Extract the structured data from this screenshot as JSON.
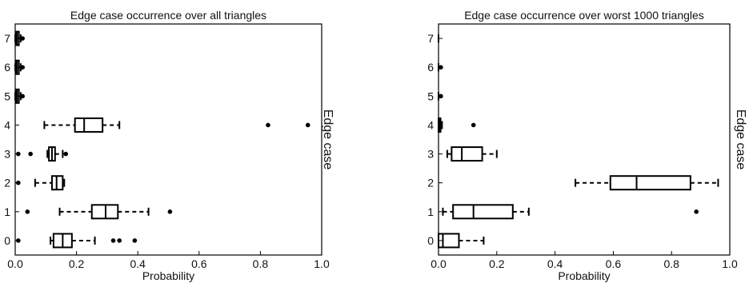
{
  "chart_data": [
    {
      "type": "boxplot",
      "orientation": "horizontal",
      "title": "Edge case occurrence over all triangles",
      "xlabel": "Probability",
      "ylabel": "Edge case",
      "xlim": [
        0.0,
        1.0
      ],
      "xticks": [
        "0.0",
        "0.2",
        "0.4",
        "0.6",
        "0.8",
        "1.0"
      ],
      "categories": [
        "0",
        "1",
        "2",
        "3",
        "4",
        "5",
        "6",
        "7"
      ],
      "boxes": [
        {
          "category": "0",
          "whislo": 0.115,
          "q1": 0.125,
          "med": 0.155,
          "q3": 0.185,
          "whishi": 0.26,
          "fliers": [
            0.01,
            0.32,
            0.34,
            0.39
          ]
        },
        {
          "category": "1",
          "whislo": 0.145,
          "q1": 0.25,
          "med": 0.295,
          "q3": 0.335,
          "whishi": 0.435,
          "fliers": [
            0.04,
            0.505
          ]
        },
        {
          "category": "2",
          "whislo": 0.065,
          "q1": 0.12,
          "med": 0.135,
          "q3": 0.155,
          "whishi": 0.16,
          "fliers": [
            0.01
          ]
        },
        {
          "category": "3",
          "whislo": 0.105,
          "q1": 0.11,
          "med": 0.12,
          "q3": 0.13,
          "whishi": 0.155,
          "fliers": [
            0.01,
            0.05,
            0.165
          ]
        },
        {
          "category": "4",
          "whislo": 0.095,
          "q1": 0.195,
          "med": 0.225,
          "q3": 0.285,
          "whishi": 0.34,
          "fliers": [
            0.825,
            0.955
          ]
        },
        {
          "category": "5",
          "whislo": 0.0,
          "q1": 0.003,
          "med": 0.006,
          "q3": 0.012,
          "whishi": 0.018,
          "fliers": [
            0.024
          ]
        },
        {
          "category": "6",
          "whislo": 0.0,
          "q1": 0.003,
          "med": 0.006,
          "q3": 0.012,
          "whishi": 0.018,
          "fliers": [
            0.024
          ]
        },
        {
          "category": "7",
          "whislo": 0.0,
          "q1": 0.003,
          "med": 0.006,
          "q3": 0.012,
          "whishi": 0.018,
          "fliers": [
            0.024
          ]
        }
      ]
    },
    {
      "type": "boxplot",
      "orientation": "horizontal",
      "title": "Edge case occurrence over worst 1000 triangles",
      "xlabel": "Probability",
      "ylabel": "Edge case",
      "xlim": [
        0.0,
        1.0
      ],
      "xticks": [
        "0.0",
        "0.2",
        "0.4",
        "0.6",
        "0.8",
        "1.0"
      ],
      "categories": [
        "0",
        "1",
        "2",
        "3",
        "4",
        "5",
        "6",
        "7"
      ],
      "boxes": [
        {
          "category": "0",
          "whislo": 0.0,
          "q1": 0.0,
          "med": 0.015,
          "q3": 0.07,
          "whishi": 0.155,
          "fliers": []
        },
        {
          "category": "1",
          "whislo": 0.015,
          "q1": 0.05,
          "med": 0.12,
          "q3": 0.255,
          "whishi": 0.31,
          "fliers": [
            0.885
          ]
        },
        {
          "category": "2",
          "whislo": 0.47,
          "q1": 0.59,
          "med": 0.68,
          "q3": 0.865,
          "whishi": 0.96,
          "fliers": []
        },
        {
          "category": "3",
          "whislo": 0.03,
          "q1": 0.045,
          "med": 0.08,
          "q3": 0.15,
          "whishi": 0.2,
          "fliers": []
        },
        {
          "category": "4",
          "whislo": 0.0,
          "q1": 0.0,
          "med": 0.003,
          "q3": 0.007,
          "whishi": 0.012,
          "fliers": [
            0.12
          ]
        },
        {
          "category": "5",
          "whislo": 0.0,
          "q1": 0.0,
          "med": 0.0,
          "q3": 0.0,
          "whishi": 0.0,
          "fliers": [
            0.008
          ]
        },
        {
          "category": "6",
          "whislo": 0.0,
          "q1": 0.0,
          "med": 0.0,
          "q3": 0.0,
          "whishi": 0.0,
          "fliers": [
            0.008
          ]
        },
        {
          "category": "7",
          "whislo": 0.0,
          "q1": 0.0,
          "med": 0.0,
          "q3": 0.0,
          "whishi": 0.0,
          "fliers": []
        }
      ]
    }
  ]
}
